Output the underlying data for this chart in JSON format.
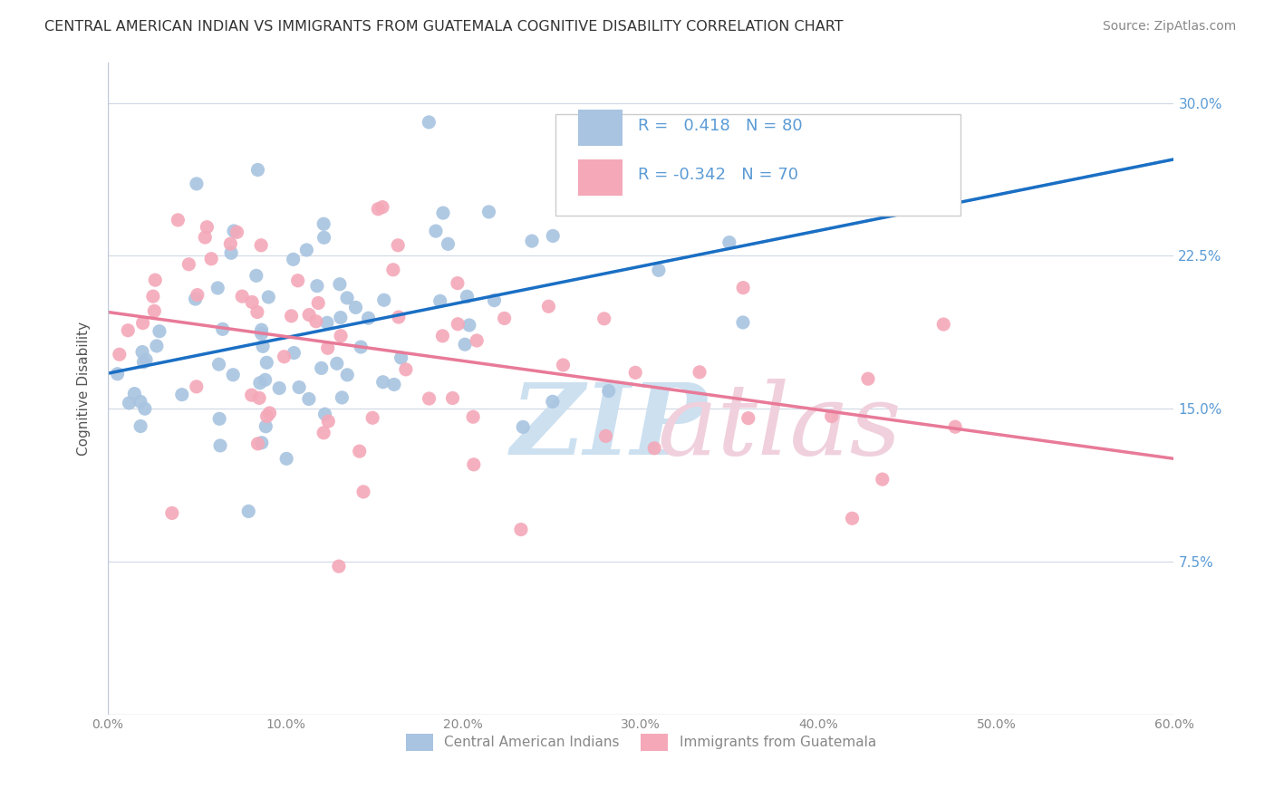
{
  "title": "CENTRAL AMERICAN INDIAN VS IMMIGRANTS FROM GUATEMALA COGNITIVE DISABILITY CORRELATION CHART",
  "source": "Source: ZipAtlas.com",
  "xlabel_ticks": [
    "0.0%",
    "10.0%",
    "20.0%",
    "30.0%",
    "40.0%",
    "50.0%",
    "60.0%"
  ],
  "xlabel_vals": [
    0.0,
    0.1,
    0.2,
    0.3,
    0.4,
    0.5,
    0.6
  ],
  "ylabel_ticks": [
    "7.5%",
    "15.0%",
    "22.5%",
    "30.0%"
  ],
  "ylabel_vals": [
    0.075,
    0.15,
    0.225,
    0.3
  ],
  "xlim": [
    0.0,
    0.6
  ],
  "ylim": [
    0.0,
    0.32
  ],
  "blue_R": 0.418,
  "blue_N": 80,
  "pink_R": -0.342,
  "pink_N": 70,
  "blue_color": "#a8c4e0",
  "pink_color": "#f4a8b8",
  "blue_line_color": "#1a6fc4",
  "pink_line_color": "#e87a98",
  "dashed_line_color": "#b0c8e8",
  "watermark_zip_color": "#cce0f0",
  "watermark_atlas_color": "#f0d0dc",
  "ylabel": "Cognitive Disability",
  "legend_label_blue": "Central American Indians",
  "legend_label_pink": "Immigrants from Guatemala"
}
